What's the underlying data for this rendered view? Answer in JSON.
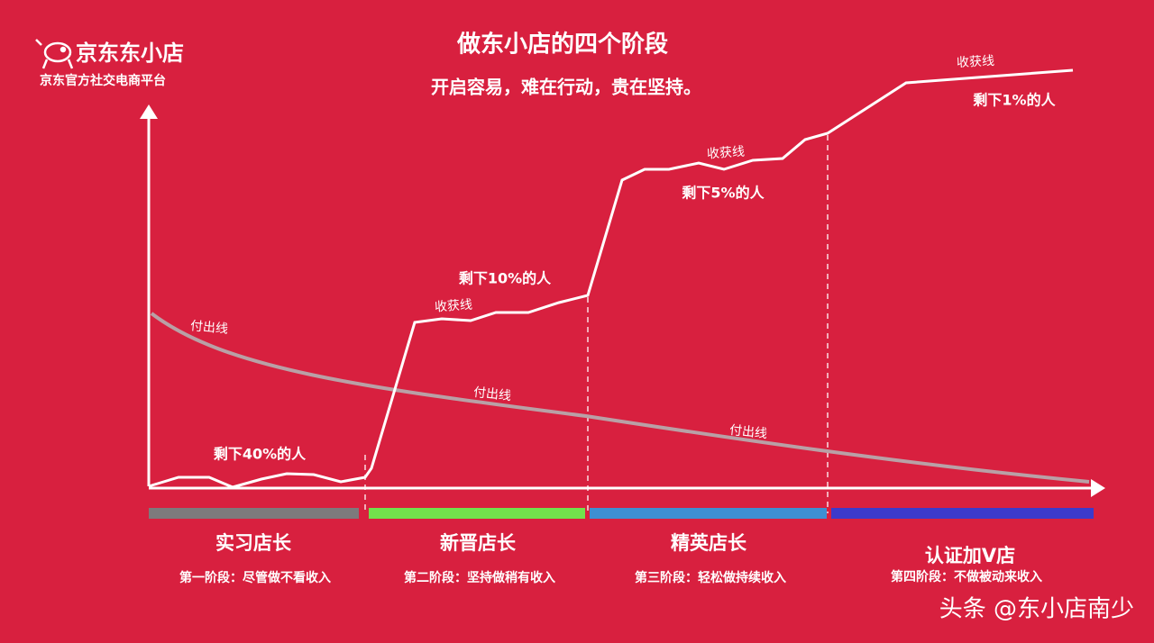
{
  "logo": {
    "name": "京东东小店",
    "tagline": "京东官方社交电商平台"
  },
  "title": "做东小店的四个阶段",
  "subtitle": "开启容易，难在行动，贵在坚持。",
  "annotations": [
    "剩下40%的人",
    "剩下10%的人",
    "剩下5%的人",
    "剩下1%的人"
  ],
  "harvest_labels": [
    "收获线",
    "收获线",
    "收获线"
  ],
  "effort_labels": [
    "付出线",
    "付出线",
    "付出线"
  ],
  "stages": [
    {
      "name": "实习店长",
      "desc": "第一阶段：尽管做不看收入"
    },
    {
      "name": "新晋店长",
      "desc": "第二阶段：坚持做稍有收入"
    },
    {
      "name": "精英店长",
      "desc": "第三阶段：轻松做持续收入"
    },
    {
      "name": "认证加V店",
      "desc": "第四阶段：不做被动来收入"
    }
  ],
  "watermark": "头条 @东小店南少"
}
